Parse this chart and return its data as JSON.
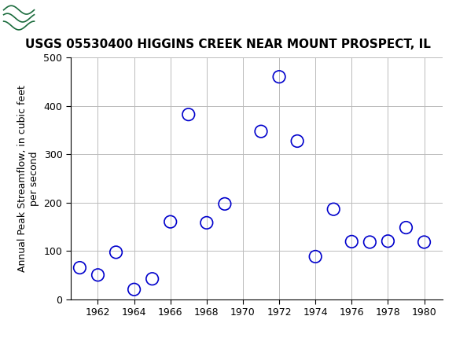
{
  "title": "USGS 05530400 HIGGINS CREEK NEAR MOUNT PROSPECT, IL",
  "ylabel_line1": "Annual Peak Streamflow, in cubic feet",
  "ylabel_line2": "per second",
  "years": [
    1961,
    1962,
    1963,
    1964,
    1965,
    1966,
    1967,
    1968,
    1969,
    1971,
    1972,
    1973,
    1974,
    1975,
    1976,
    1977,
    1978,
    1979,
    1980
  ],
  "values": [
    65,
    50,
    97,
    20,
    42,
    160,
    382,
    158,
    197,
    347,
    460,
    327,
    88,
    186,
    119,
    118,
    120,
    148,
    118
  ],
  "xlim": [
    1960.5,
    1981
  ],
  "ylim": [
    0,
    500
  ],
  "xticks": [
    1962,
    1964,
    1966,
    1968,
    1970,
    1972,
    1974,
    1976,
    1978,
    1980
  ],
  "yticks": [
    0,
    100,
    200,
    300,
    400,
    500
  ],
  "marker_color": "#0000CC",
  "marker_size": 6,
  "grid_color": "#BBBBBB",
  "background_color": "#FFFFFF",
  "header_color": "#1A6B3C",
  "title_fontsize": 11,
  "axis_label_fontsize": 9,
  "tick_fontsize": 9
}
